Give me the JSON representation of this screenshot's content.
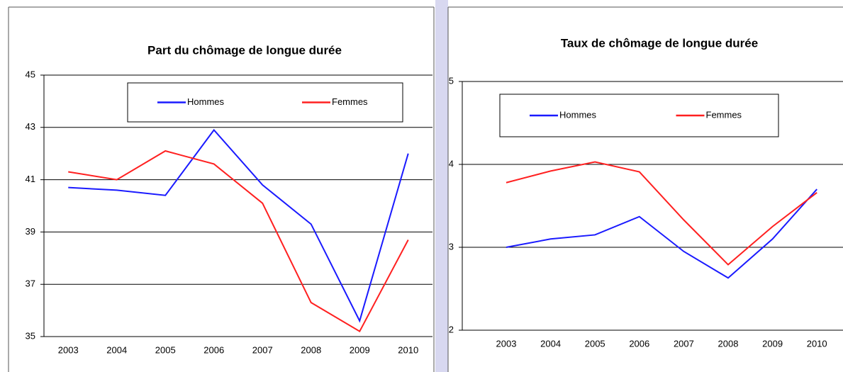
{
  "chart_data": [
    {
      "type": "line",
      "title": "Part du chômage de longue durée",
      "categories": [
        "2003",
        "2004",
        "2005",
        "2006",
        "2007",
        "2008",
        "2009",
        "2010"
      ],
      "series": [
        {
          "name": "Hommes",
          "color": "#1a1aff",
          "values": [
            40.7,
            40.6,
            40.4,
            42.9,
            40.8,
            39.3,
            35.6,
            42.0
          ]
        },
        {
          "name": "Femmes",
          "color": "#ff2020",
          "values": [
            41.3,
            41.0,
            42.1,
            41.6,
            40.1,
            36.3,
            35.2,
            38.7
          ]
        }
      ],
      "ylim": [
        35,
        45
      ],
      "yticks": [
        35,
        37,
        39,
        41,
        43,
        45
      ],
      "grid": true
    },
    {
      "type": "line",
      "title": "Taux de chômage de longue durée",
      "categories": [
        "2003",
        "2004",
        "2005",
        "2006",
        "2007",
        "2008",
        "2009",
        "2010"
      ],
      "series": [
        {
          "name": "Hommes",
          "color": "#1a1aff",
          "values": [
            3.0,
            3.1,
            3.15,
            3.37,
            2.95,
            2.63,
            3.1,
            3.7
          ]
        },
        {
          "name": "Femmes",
          "color": "#ff2020",
          "values": [
            3.78,
            3.92,
            4.03,
            3.91,
            3.33,
            2.79,
            3.25,
            3.66
          ]
        }
      ],
      "ylim": [
        2,
        5
      ],
      "yticks": [
        2,
        3,
        4,
        5
      ],
      "grid": true
    }
  ]
}
